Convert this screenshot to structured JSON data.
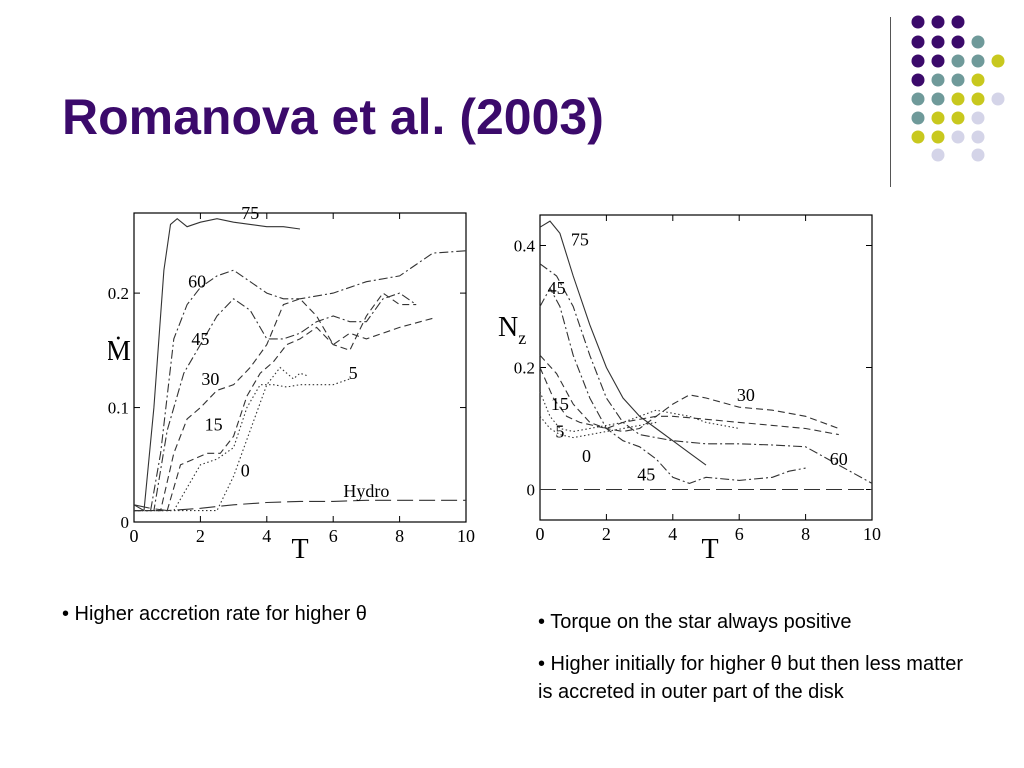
{
  "slide": {
    "title": "Romanova et al. (2003)"
  },
  "decoration": {
    "dot_colors": [
      "#3b0a6b",
      "#6f9a9a",
      "#c8c81e",
      "#d4d4e8"
    ]
  },
  "captions": {
    "left": "• Higher accretion rate for higher θ",
    "right_1": "• Torque on the star always positive",
    "right_2": "• Higher initially for higher θ but then less matter is accreted in outer part of the disk"
  },
  "chart_data": [
    {
      "type": "line",
      "xlabel": "T",
      "ylabel": "Ṁ",
      "xlim": [
        0,
        10
      ],
      "ylim": [
        0,
        0.27
      ],
      "xticks": [
        0,
        2,
        4,
        6,
        8,
        10
      ],
      "yticks": [
        0,
        0.1,
        0.2
      ],
      "ytick_labels": [
        "0",
        "0.1",
        "0.2"
      ],
      "grid": false,
      "series": [
        {
          "name": "75",
          "style": "solid",
          "label_pos": [
            3.5,
            0.27
          ],
          "x": [
            0,
            0.3,
            0.6,
            0.9,
            1.1,
            1.3,
            1.6,
            2.0,
            2.5,
            3.0,
            3.5,
            4.0,
            4.5,
            5.0
          ],
          "y": [
            0.015,
            0.01,
            0.1,
            0.22,
            0.26,
            0.265,
            0.258,
            0.262,
            0.265,
            0.262,
            0.26,
            0.258,
            0.258,
            0.256
          ]
        },
        {
          "name": "60",
          "style": "dashdot",
          "label_pos": [
            1.9,
            0.21
          ],
          "x": [
            0,
            0.5,
            0.8,
            1.2,
            1.6,
            2.0,
            2.5,
            3.0,
            3.5,
            4.0,
            4.5,
            5.0,
            6.0,
            7.0,
            8.0,
            8.5,
            9.0,
            10.0
          ],
          "y": [
            0.01,
            0.01,
            0.06,
            0.16,
            0.19,
            0.205,
            0.215,
            0.22,
            0.21,
            0.2,
            0.195,
            0.195,
            0.2,
            0.21,
            0.215,
            0.225,
            0.235,
            0.237
          ]
        },
        {
          "name": "45",
          "style": "dashdot",
          "label_pos": [
            2.0,
            0.16
          ],
          "x": [
            0,
            0.6,
            1.0,
            1.5,
            2.0,
            2.5,
            3.0,
            3.5,
            4.0,
            4.5,
            5.0,
            5.5,
            6.0,
            6.5,
            7.0,
            7.5,
            8.0,
            8.5
          ],
          "y": [
            0.01,
            0.01,
            0.08,
            0.13,
            0.155,
            0.18,
            0.195,
            0.185,
            0.16,
            0.16,
            0.165,
            0.175,
            0.18,
            0.175,
            0.175,
            0.195,
            0.2,
            0.19
          ]
        },
        {
          "name": "30",
          "style": "dashed",
          "label_pos": [
            2.3,
            0.125
          ],
          "x": [
            0,
            0.8,
            1.2,
            1.6,
            2.0,
            2.5,
            3.0,
            3.5,
            4.0,
            4.5,
            5.0,
            5.5,
            6.0,
            6.5,
            7.0,
            8.0,
            9.0
          ],
          "y": [
            0.01,
            0.01,
            0.06,
            0.09,
            0.1,
            0.115,
            0.12,
            0.135,
            0.155,
            0.19,
            0.195,
            0.18,
            0.155,
            0.165,
            0.16,
            0.17,
            0.178
          ]
        },
        {
          "name": "15",
          "style": "dashed",
          "label_pos": [
            2.4,
            0.085
          ],
          "x": [
            0,
            1.0,
            1.4,
            1.8,
            2.2,
            2.6,
            3.0,
            3.4,
            3.8,
            4.2,
            4.6,
            5.0,
            5.5,
            6.0,
            6.5,
            7.0,
            7.5,
            8.0,
            8.5
          ],
          "y": [
            0.01,
            0.01,
            0.05,
            0.055,
            0.06,
            0.06,
            0.075,
            0.11,
            0.13,
            0.14,
            0.155,
            0.16,
            0.17,
            0.155,
            0.15,
            0.18,
            0.2,
            0.19,
            0.19
          ]
        },
        {
          "name": "5",
          "style": "dotted",
          "label_pos": [
            6.6,
            0.13
          ],
          "x": [
            0,
            1.2,
            2.0,
            2.5,
            3.0,
            3.4,
            3.8,
            4.2,
            4.6,
            5.0,
            5.5,
            6.0,
            6.5
          ],
          "y": [
            0.01,
            0.01,
            0.05,
            0.055,
            0.065,
            0.1,
            0.12,
            0.12,
            0.118,
            0.12,
            0.12,
            0.12,
            0.125
          ]
        },
        {
          "name": "0",
          "style": "dotted",
          "label_pos": [
            3.35,
            0.045
          ],
          "x": [
            0,
            2.5,
            3.0,
            3.5,
            4.0,
            4.4,
            4.8,
            5.0,
            5.2
          ],
          "y": [
            0.01,
            0.01,
            0.04,
            0.08,
            0.12,
            0.135,
            0.125,
            0.13,
            0.128
          ]
        },
        {
          "name": "Hydro",
          "style": "longdash",
          "label_pos": [
            7.0,
            0.027
          ],
          "x": [
            0,
            0.5,
            1.0,
            2.0,
            3.0,
            4.0,
            5.0,
            6.0,
            7.0,
            8.0,
            9.0,
            10.0
          ],
          "y": [
            0.015,
            0.012,
            0.01,
            0.012,
            0.015,
            0.017,
            0.018,
            0.018,
            0.019,
            0.019,
            0.019,
            0.019
          ]
        }
      ]
    },
    {
      "type": "line",
      "xlabel": "T",
      "ylabel": "N_z",
      "xlim": [
        0,
        10
      ],
      "ylim": [
        -0.05,
        0.45
      ],
      "xticks": [
        0,
        2,
        4,
        6,
        8,
        10
      ],
      "yticks": [
        0,
        0.2,
        0.4
      ],
      "ytick_labels": [
        "0",
        "0.2",
        "0.4"
      ],
      "grid": false,
      "series": [
        {
          "name": "75",
          "style": "solid",
          "label_pos": [
            1.2,
            0.41
          ],
          "x": [
            0,
            0.3,
            0.6,
            1.0,
            1.5,
            2.0,
            2.5,
            3.0,
            3.5,
            4.0,
            4.5,
            5.0
          ],
          "y": [
            0.43,
            0.44,
            0.42,
            0.35,
            0.27,
            0.2,
            0.15,
            0.12,
            0.1,
            0.08,
            0.06,
            0.04
          ]
        },
        {
          "name": "60",
          "style": "dashdot",
          "label_pos": [
            9.0,
            0.05
          ],
          "x": [
            0,
            0.5,
            1.0,
            1.5,
            2.0,
            2.5,
            3.0,
            4.0,
            5.0,
            6.0,
            7.0,
            8.0,
            9.0,
            10.0
          ],
          "y": [
            0.37,
            0.35,
            0.3,
            0.22,
            0.15,
            0.11,
            0.09,
            0.08,
            0.075,
            0.075,
            0.073,
            0.07,
            0.04,
            0.01
          ]
        },
        {
          "name": "45",
          "style": "dashdot",
          "label_pos": [
            0.5,
            0.33
          ],
          "x": [
            0,
            0.3,
            0.6,
            1.0,
            1.5,
            2.0,
            2.5,
            3.0,
            3.5,
            4.0,
            4.5,
            5.0,
            6.0,
            7.0,
            7.5,
            8.0
          ],
          "y": [
            0.3,
            0.33,
            0.3,
            0.22,
            0.15,
            0.1,
            0.08,
            0.07,
            0.05,
            0.02,
            0.01,
            0.02,
            0.015,
            0.02,
            0.03,
            0.035
          ]
        },
        {
          "name": "30",
          "style": "dashed",
          "label_pos": [
            6.2,
            0.155
          ],
          "x": [
            0,
            0.5,
            1.0,
            1.5,
            2.0,
            2.5,
            3.0,
            3.5,
            4.0,
            4.5,
            5.0,
            6.0,
            7.0,
            8.0,
            9.0
          ],
          "y": [
            0.22,
            0.19,
            0.14,
            0.11,
            0.1,
            0.095,
            0.1,
            0.12,
            0.14,
            0.155,
            0.15,
            0.135,
            0.13,
            0.12,
            0.1
          ]
        },
        {
          "name": "15",
          "style": "dashed",
          "label_pos": [
            0.6,
            0.14
          ],
          "x": [
            0,
            0.4,
            0.8,
            1.2,
            1.6,
            2.0,
            2.5,
            3.0,
            3.5,
            4.0,
            5.0,
            6.0,
            7.0,
            8.0,
            9.0
          ],
          "y": [
            0.2,
            0.15,
            0.12,
            0.11,
            0.105,
            0.1,
            0.11,
            0.115,
            0.12,
            0.12,
            0.115,
            0.11,
            0.105,
            0.1,
            0.09
          ]
        },
        {
          "name": "5",
          "style": "dotted",
          "label_pos": [
            0.6,
            0.095
          ],
          "x": [
            0,
            0.3,
            0.6,
            1.0,
            1.5,
            2.0,
            2.5,
            3.0,
            3.5,
            4.0,
            4.5,
            5.0,
            5.5,
            6.0
          ],
          "y": [
            0.16,
            0.12,
            0.1,
            0.095,
            0.1,
            0.105,
            0.11,
            0.12,
            0.13,
            0.125,
            0.12,
            0.11,
            0.105,
            0.1
          ]
        },
        {
          "name": "0",
          "style": "dotted",
          "label_pos": [
            1.4,
            0.055
          ],
          "x": [
            0,
            0.3,
            0.6,
            1.0,
            1.5,
            2.0,
            2.5,
            3.0,
            3.5
          ],
          "y": [
            0.12,
            0.1,
            0.09,
            0.085,
            0.09,
            0.095,
            0.1,
            0.105,
            0.11
          ]
        },
        {
          "name": "",
          "style": "longdash",
          "x": [
            0,
            10
          ],
          "y": [
            0,
            0
          ]
        }
      ],
      "annotations": [
        {
          "text": "45",
          "pos": [
            3.2,
            0.025
          ]
        }
      ]
    }
  ]
}
